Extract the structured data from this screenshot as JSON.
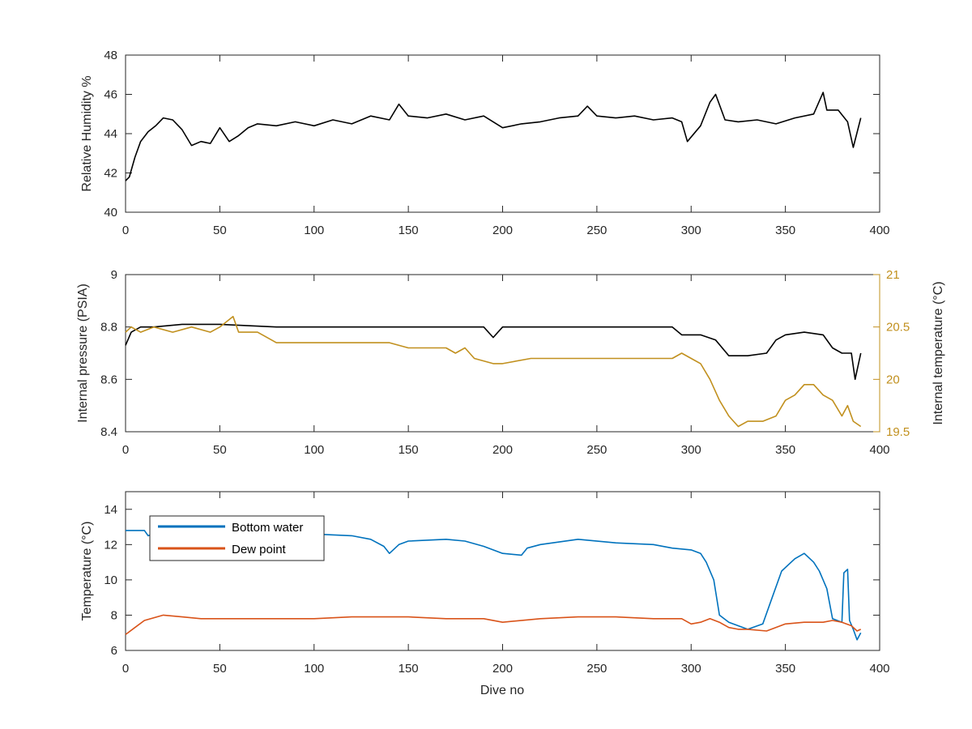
{
  "chart_data": [
    {
      "type": "line",
      "xlabel": "",
      "ylabel": "Relative Humidity %",
      "xlim": [
        0,
        400
      ],
      "ylim": [
        40,
        48
      ],
      "xticks": [
        "0",
        "50",
        "100",
        "150",
        "200",
        "250",
        "300",
        "350",
        "400"
      ],
      "yticks": [
        "40",
        "42",
        "44",
        "46",
        "48"
      ],
      "grid": false,
      "series": [
        {
          "color": "#000000",
          "x": [
            0,
            2,
            5,
            8,
            12,
            16,
            20,
            25,
            30,
            35,
            40,
            45,
            50,
            55,
            60,
            65,
            70,
            80,
            90,
            100,
            110,
            120,
            130,
            140,
            145,
            150,
            160,
            170,
            180,
            190,
            200,
            210,
            220,
            230,
            240,
            245,
            250,
            260,
            270,
            280,
            290,
            295,
            298,
            305,
            310,
            313,
            318,
            325,
            335,
            345,
            355,
            365,
            370,
            372,
            378,
            383,
            386,
            390
          ],
          "y": [
            41.6,
            41.8,
            42.8,
            43.6,
            44.1,
            44.4,
            44.8,
            44.7,
            44.2,
            43.4,
            43.6,
            43.5,
            44.3,
            43.6,
            43.9,
            44.3,
            44.5,
            44.4,
            44.6,
            44.4,
            44.7,
            44.5,
            44.9,
            44.7,
            45.5,
            44.9,
            44.8,
            45.0,
            44.7,
            44.9,
            44.3,
            44.5,
            44.6,
            44.8,
            44.9,
            45.4,
            44.9,
            44.8,
            44.9,
            44.7,
            44.8,
            44.6,
            43.6,
            44.4,
            45.6,
            46.0,
            44.7,
            44.6,
            44.7,
            44.5,
            44.8,
            45.0,
            46.1,
            45.2,
            45.2,
            44.6,
            43.3,
            44.8
          ]
        }
      ]
    },
    {
      "type": "line",
      "xlabel": "",
      "ylabel": "Internal pressure (PSIA)",
      "ylabel_right": "Internal temperature (°C)",
      "xlim": [
        0,
        400
      ],
      "ylim": [
        8.4,
        9
      ],
      "ylim_right": [
        19.5,
        21
      ],
      "xticks": [
        "0",
        "50",
        "100",
        "150",
        "200",
        "250",
        "300",
        "350",
        "400"
      ],
      "yticks": [
        "8.4",
        "8.6",
        "8.8",
        "9"
      ],
      "yticks_right": [
        "19.5",
        "20",
        "20.5",
        "21"
      ],
      "grid": false,
      "series": [
        {
          "axis": "left",
          "color": "#000000",
          "x": [
            0,
            3,
            8,
            15,
            30,
            50,
            80,
            100,
            150,
            190,
            195,
            200,
            210,
            250,
            290,
            295,
            305,
            313,
            320,
            330,
            340,
            345,
            350,
            360,
            370,
            375,
            380,
            385,
            387,
            390
          ],
          "y": [
            8.73,
            8.78,
            8.8,
            8.8,
            8.81,
            8.81,
            8.8,
            8.8,
            8.8,
            8.8,
            8.76,
            8.8,
            8.8,
            8.8,
            8.8,
            8.77,
            8.77,
            8.75,
            8.69,
            8.69,
            8.7,
            8.75,
            8.77,
            8.78,
            8.77,
            8.72,
            8.7,
            8.7,
            8.6,
            8.7
          ]
        },
        {
          "axis": "right",
          "color": "#C1901E",
          "x": [
            0,
            3,
            8,
            15,
            25,
            35,
            45,
            50,
            57,
            60,
            70,
            75,
            80,
            100,
            120,
            130,
            140,
            150,
            160,
            170,
            175,
            180,
            185,
            195,
            200,
            215,
            220,
            230,
            250,
            270,
            280,
            290,
            295,
            300,
            305,
            310,
            315,
            320,
            325,
            330,
            338,
            345,
            350,
            355,
            360,
            365,
            370,
            375,
            380,
            383,
            386,
            390
          ],
          "y": [
            20.45,
            20.5,
            20.45,
            20.5,
            20.45,
            20.5,
            20.45,
            20.5,
            20.6,
            20.45,
            20.45,
            20.4,
            20.35,
            20.35,
            20.35,
            20.35,
            20.35,
            20.3,
            20.3,
            20.3,
            20.25,
            20.3,
            20.2,
            20.15,
            20.15,
            20.2,
            20.2,
            20.2,
            20.2,
            20.2,
            20.2,
            20.2,
            20.25,
            20.2,
            20.15,
            20.0,
            19.8,
            19.65,
            19.55,
            19.6,
            19.6,
            19.65,
            19.8,
            19.85,
            19.95,
            19.95,
            19.85,
            19.8,
            19.65,
            19.75,
            19.6,
            19.55
          ]
        }
      ]
    },
    {
      "type": "line",
      "xlabel": "Dive no",
      "ylabel": "Temperature (°C)",
      "xlim": [
        0,
        400
      ],
      "ylim": [
        6,
        15
      ],
      "xticks": [
        "0",
        "50",
        "100",
        "150",
        "200",
        "250",
        "300",
        "350",
        "400"
      ],
      "yticks": [
        "6",
        "8",
        "10",
        "12",
        "14"
      ],
      "grid": false,
      "legend_position": "top-left",
      "series": [
        {
          "name": "Bottom water",
          "color": "#0072BD",
          "x": [
            0,
            10,
            12,
            20,
            30,
            40,
            60,
            80,
            100,
            120,
            130,
            137,
            140,
            145,
            150,
            170,
            180,
            190,
            200,
            210,
            213,
            220,
            240,
            260,
            280,
            290,
            300,
            305,
            308,
            312,
            315,
            320,
            330,
            338,
            343,
            348,
            355,
            360,
            365,
            368,
            372,
            375,
            380,
            381,
            383,
            384,
            386,
            388,
            390
          ],
          "y": [
            12.8,
            12.8,
            12.5,
            12.8,
            12.7,
            12.8,
            12.7,
            12.7,
            12.6,
            12.5,
            12.3,
            11.9,
            11.5,
            12.0,
            12.2,
            12.3,
            12.2,
            11.9,
            11.5,
            11.4,
            11.8,
            12.0,
            12.3,
            12.1,
            12.0,
            11.8,
            11.7,
            11.5,
            11.0,
            10.0,
            8.0,
            7.6,
            7.2,
            7.5,
            9.0,
            10.5,
            11.2,
            11.5,
            11.0,
            10.5,
            9.5,
            7.8,
            7.6,
            10.4,
            10.6,
            7.7,
            7.2,
            6.6,
            7.0
          ]
        },
        {
          "name": "Dew point",
          "color": "#D95319",
          "x": [
            0,
            5,
            10,
            20,
            30,
            40,
            60,
            80,
            100,
            120,
            130,
            150,
            170,
            190,
            200,
            220,
            240,
            260,
            280,
            295,
            300,
            305,
            310,
            315,
            320,
            325,
            330,
            340,
            350,
            360,
            370,
            375,
            380,
            385,
            388,
            390
          ],
          "y": [
            6.9,
            7.3,
            7.7,
            8.0,
            7.9,
            7.8,
            7.8,
            7.8,
            7.8,
            7.9,
            7.9,
            7.9,
            7.8,
            7.8,
            7.6,
            7.8,
            7.9,
            7.9,
            7.8,
            7.8,
            7.5,
            7.6,
            7.8,
            7.6,
            7.3,
            7.2,
            7.2,
            7.1,
            7.5,
            7.6,
            7.6,
            7.7,
            7.6,
            7.4,
            7.1,
            7.2
          ]
        }
      ]
    }
  ]
}
